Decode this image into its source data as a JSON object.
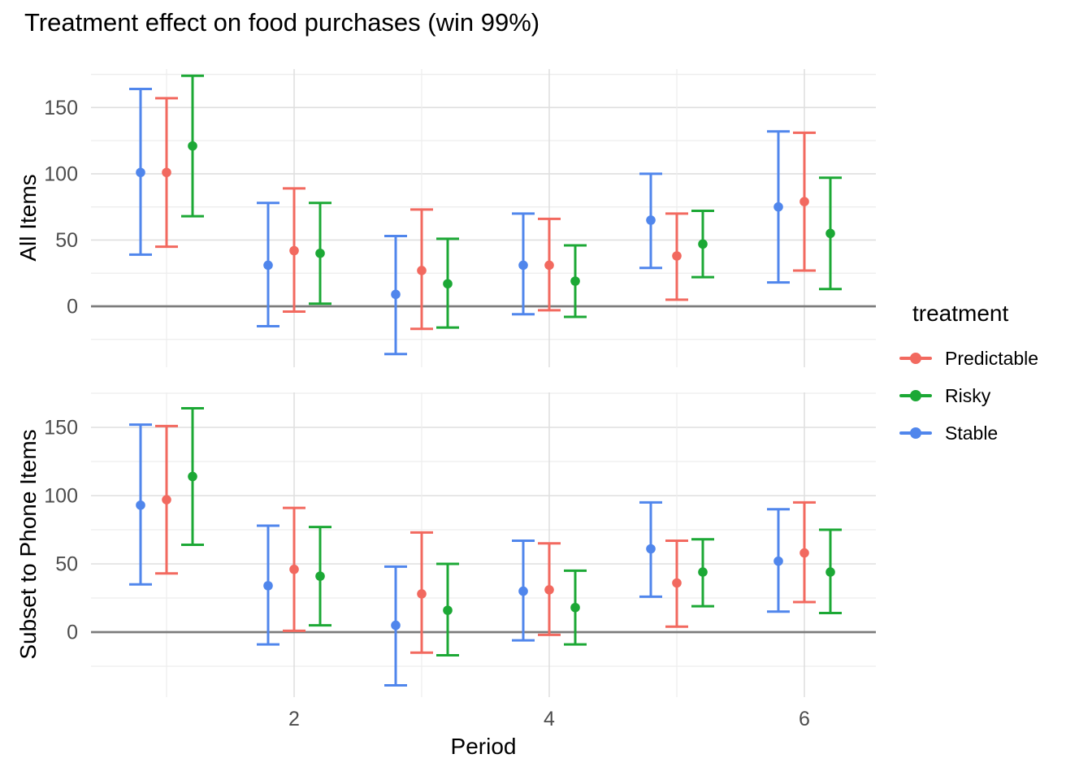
{
  "title": "Treatment effect on food purchases (win 99%)",
  "legend": {
    "title": "treatment",
    "items": [
      {
        "label": "Predictable",
        "color": "#F2695F"
      },
      {
        "label": "Risky",
        "color": "#1CA835"
      },
      {
        "label": "Stable",
        "color": "#5086EC"
      }
    ]
  },
  "chart_data": {
    "type": "pointrange",
    "title": "Treatment effect on food purchases (win 99%)",
    "xlabel": "Period",
    "x_ticks": [
      2,
      4,
      6
    ],
    "x_gridlines_minor": [
      1,
      3,
      5
    ],
    "y_ticks": [
      0,
      50,
      100,
      150
    ],
    "y_gridlines_minor": [
      -25,
      25,
      75,
      125,
      175
    ],
    "ylim": [
      -47,
      179
    ],
    "xlim": [
      0.41,
      6.56
    ],
    "zero_line": 0,
    "legend_position": "right",
    "grid": true,
    "periods": [
      1,
      2,
      3,
      4,
      5,
      6
    ],
    "dodge_order": [
      "Stable",
      "Predictable",
      "Risky"
    ],
    "colors": {
      "Predictable": "#F2695F",
      "Risky": "#1CA835",
      "Stable": "#5086EC"
    },
    "panels": [
      {
        "ylabel": "All Items",
        "series": [
          {
            "name": "Stable",
            "mid": [
              101,
              31,
              9,
              31,
              65,
              75
            ],
            "lo": [
              39,
              -15,
              -36,
              -6,
              29,
              18
            ],
            "hi": [
              164,
              78,
              53,
              70,
              100,
              132
            ]
          },
          {
            "name": "Predictable",
            "mid": [
              101,
              42,
              27,
              31,
              38,
              79
            ],
            "lo": [
              45,
              -4,
              -17,
              -3,
              5,
              27
            ],
            "hi": [
              157,
              89,
              73,
              66,
              70,
              131
            ]
          },
          {
            "name": "Risky",
            "mid": [
              121,
              40,
              17,
              19,
              47,
              55
            ],
            "lo": [
              68,
              2,
              -16,
              -8,
              22,
              13
            ],
            "hi": [
              174,
              78,
              51,
              46,
              72,
              97
            ]
          }
        ]
      },
      {
        "ylabel": "Subset to Phone Items",
        "series": [
          {
            "name": "Stable",
            "mid": [
              93,
              34,
              5,
              30,
              61,
              52
            ],
            "lo": [
              35,
              -9,
              -39,
              -6,
              26,
              15
            ],
            "hi": [
              152,
              78,
              48,
              67,
              95,
              90
            ]
          },
          {
            "name": "Predictable",
            "mid": [
              97,
              46,
              28,
              31,
              36,
              58
            ],
            "lo": [
              43,
              1,
              -15,
              -2,
              4,
              22
            ],
            "hi": [
              151,
              91,
              73,
              65,
              67,
              95
            ]
          },
          {
            "name": "Risky",
            "mid": [
              114,
              41,
              16,
              18,
              44,
              44
            ],
            "lo": [
              64,
              5,
              -17,
              -9,
              19,
              14
            ],
            "hi": [
              164,
              77,
              50,
              45,
              68,
              75
            ]
          }
        ]
      }
    ]
  }
}
